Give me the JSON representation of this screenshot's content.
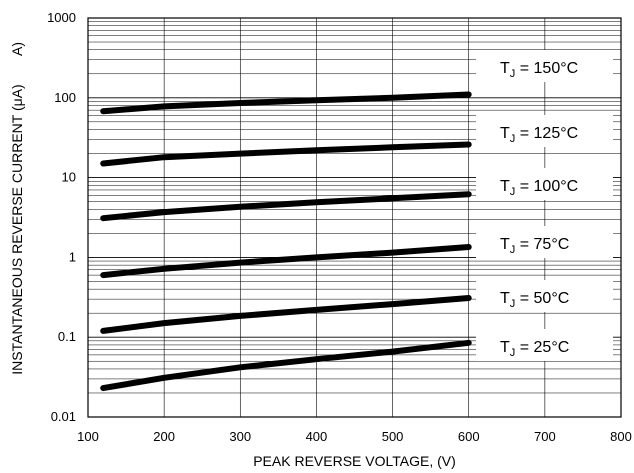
{
  "chart_data": {
    "type": "line",
    "title": "",
    "xlabel": "PEAK REVERSE VOLTAGE, (V)",
    "ylabel": "INSTANTANEOUS REVERSE CURRENT (μA)",
    "ylabel_extra": "A)",
    "x_scale": "linear",
    "y_scale": "log",
    "xlim": [
      100,
      800
    ],
    "ylim": [
      0.01,
      1000
    ],
    "x_ticks": [
      "100",
      "200",
      "300",
      "400",
      "500",
      "600",
      "700",
      "800"
    ],
    "y_ticks": [
      "0.01",
      "0.1",
      "1",
      "10",
      "100",
      "1000"
    ],
    "grid": true,
    "legend": "inline-right",
    "series": [
      {
        "name": "T_J = 150°C",
        "x": [
          120,
          200,
          300,
          400,
          500,
          600
        ],
        "y": [
          68,
          78,
          86,
          93,
          100,
          110
        ]
      },
      {
        "name": "T_J = 125°C",
        "x": [
          120,
          200,
          300,
          400,
          500,
          600
        ],
        "y": [
          15,
          18,
          20,
          22,
          24,
          26
        ]
      },
      {
        "name": "T_J = 100°C",
        "x": [
          120,
          200,
          300,
          400,
          500,
          600
        ],
        "y": [
          3.1,
          3.7,
          4.3,
          4.9,
          5.5,
          6.2
        ]
      },
      {
        "name": "T_J = 75°C",
        "x": [
          120,
          200,
          300,
          400,
          500,
          600
        ],
        "y": [
          0.6,
          0.72,
          0.86,
          1.0,
          1.15,
          1.35
        ]
      },
      {
        "name": "T_J = 50°C",
        "x": [
          120,
          200,
          300,
          400,
          500,
          600
        ],
        "y": [
          0.12,
          0.15,
          0.185,
          0.22,
          0.26,
          0.31
        ]
      },
      {
        "name": "T_J = 25°C",
        "x": [
          120,
          200,
          300,
          400,
          500,
          600
        ],
        "y": [
          0.023,
          0.031,
          0.042,
          0.053,
          0.066,
          0.085
        ]
      }
    ],
    "labels": [
      {
        "main": "T",
        "sub": "J",
        "rest": " = 150°C"
      },
      {
        "main": "T",
        "sub": "J",
        "rest": " = 125°C"
      },
      {
        "main": "T",
        "sub": "J",
        "rest": " = 100°C"
      },
      {
        "main": "T",
        "sub": "J",
        "rest": " = 75°C"
      },
      {
        "main": "T",
        "sub": "J",
        "rest": " = 50°C"
      },
      {
        "main": "T",
        "sub": "J",
        "rest": " = 25°C"
      }
    ],
    "colors": {
      "line": "#000000",
      "grid": "#000000",
      "background": "#ffffff"
    }
  }
}
